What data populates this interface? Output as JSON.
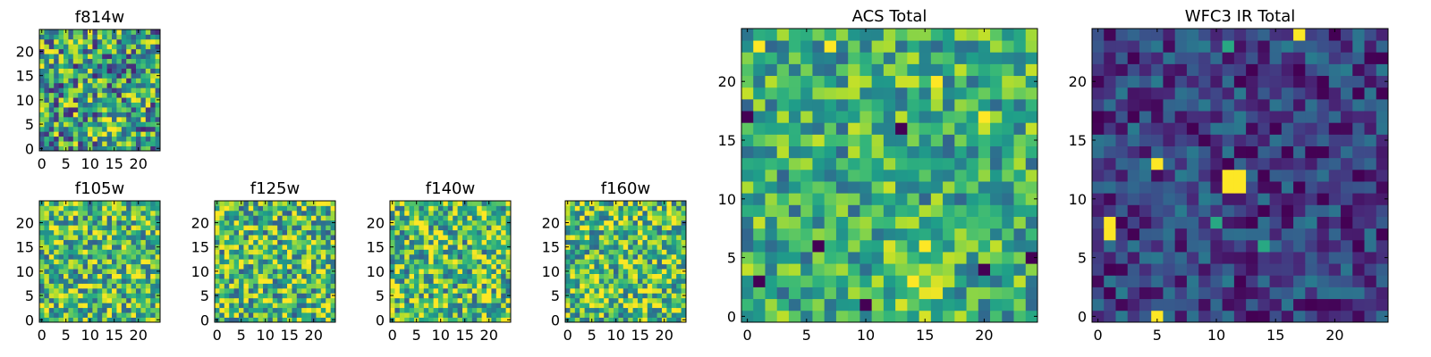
{
  "chart_data": [
    {
      "type": "heatmap",
      "title": "f814w",
      "colormap": "viridis",
      "grid_size": 25,
      "xlim": [
        -0.5,
        24.5
      ],
      "ylim": [
        -0.5,
        24.5
      ],
      "x_ticks": [
        0,
        5,
        10,
        15,
        20
      ],
      "y_ticks": [
        0,
        5,
        10,
        15,
        20
      ],
      "origin": "lower",
      "blob": {
        "x": 14,
        "y": 4,
        "strength": 0.35
      },
      "seed": 11,
      "base": 0.55,
      "noise": 0.45
    },
    {
      "type": "heatmap",
      "title": "f105w",
      "colormap": "viridis",
      "grid_size": 25,
      "xlim": [
        -0.5,
        24.5
      ],
      "ylim": [
        -0.5,
        24.5
      ],
      "x_ticks": [
        0,
        5,
        10,
        15,
        20
      ],
      "y_ticks": [
        0,
        5,
        10,
        15,
        20
      ],
      "origin": "lower",
      "seed": 23,
      "base": 0.68,
      "noise": 0.38
    },
    {
      "type": "heatmap",
      "title": "f125w",
      "colormap": "viridis",
      "grid_size": 25,
      "xlim": [
        -0.5,
        24.5
      ],
      "ylim": [
        -0.5,
        24.5
      ],
      "x_ticks": [
        0,
        5,
        10,
        15,
        20
      ],
      "y_ticks": [
        0,
        5,
        10,
        15,
        20
      ],
      "origin": "lower",
      "seed": 37,
      "base": 0.68,
      "noise": 0.4
    },
    {
      "type": "heatmap",
      "title": "f140w",
      "colormap": "viridis",
      "grid_size": 25,
      "xlim": [
        -0.5,
        24.5
      ],
      "ylim": [
        -0.5,
        24.5
      ],
      "x_ticks": [
        0,
        5,
        10,
        15,
        20
      ],
      "y_ticks": [
        0,
        5,
        10,
        15,
        20
      ],
      "origin": "lower",
      "seed": 51,
      "base": 0.7,
      "noise": 0.4
    },
    {
      "type": "heatmap",
      "title": "f160w",
      "colormap": "viridis",
      "grid_size": 25,
      "xlim": [
        -0.5,
        24.5
      ],
      "ylim": [
        -0.5,
        24.5
      ],
      "x_ticks": [
        0,
        5,
        10,
        15,
        20
      ],
      "y_ticks": [
        0,
        5,
        10,
        15,
        20
      ],
      "origin": "lower",
      "seed": 67,
      "base": 0.7,
      "noise": 0.38
    },
    {
      "type": "heatmap",
      "title": "ACS Total",
      "colormap": "viridis",
      "grid_size": 25,
      "xlim": [
        -0.5,
        24.5
      ],
      "ylim": [
        -0.5,
        24.5
      ],
      "x_ticks": [
        0,
        5,
        10,
        15,
        20
      ],
      "y_ticks": [
        0,
        5,
        10,
        15,
        20
      ],
      "origin": "lower",
      "blob": {
        "x": 14,
        "y": 4,
        "strength": 0.3
      },
      "dark_cells": [
        [
          0,
          17
        ],
        [
          6,
          6
        ],
        [
          10,
          1
        ],
        [
          13,
          16
        ],
        [
          20,
          4
        ],
        [
          24,
          5
        ],
        [
          1,
          3
        ]
      ],
      "bright_cells": [
        [
          16,
          20
        ],
        [
          20,
          17
        ],
        [
          1,
          23
        ],
        [
          7,
          23
        ]
      ],
      "seed": 89,
      "base": 0.62,
      "noise": 0.3
    },
    {
      "type": "heatmap",
      "title": "WFC3 IR Total",
      "colormap": "viridis",
      "grid_size": 25,
      "xlim": [
        -0.5,
        24.5
      ],
      "ylim": [
        -0.5,
        24.5
      ],
      "x_ticks": [
        0,
        5,
        10,
        15,
        20
      ],
      "y_ticks": [
        0,
        5,
        10,
        15,
        20
      ],
      "origin": "lower",
      "bright_cells": [
        [
          5,
          13
        ],
        [
          11,
          12
        ],
        [
          12,
          12
        ],
        [
          11,
          11
        ],
        [
          12,
          11
        ],
        [
          1,
          8
        ],
        [
          1,
          7
        ],
        [
          5,
          0
        ],
        [
          17,
          24
        ]
      ],
      "mid_cells": [
        [
          11,
          23
        ],
        [
          14,
          6
        ],
        [
          10,
          8
        ]
      ],
      "seed": 101,
      "base": 0.2,
      "noise": 0.22
    }
  ],
  "colormap": {
    "name": "viridis",
    "stops": [
      "#440154",
      "#482878",
      "#3e4989",
      "#31688e",
      "#26828e",
      "#1f9e89",
      "#35b779",
      "#6ece58",
      "#b5de2b",
      "#fde725"
    ]
  }
}
